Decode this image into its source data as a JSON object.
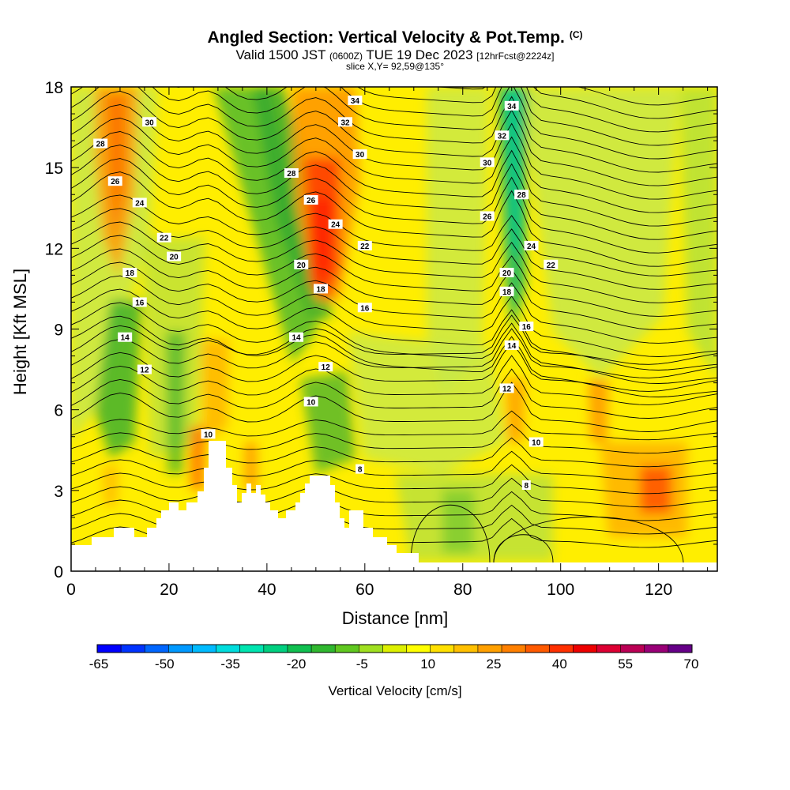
{
  "header": {
    "title": "Angled Section: Vertical Velocity & Pot.Temp.",
    "title_mark": "(C)",
    "valid_prefix": "Valid 1500 JST",
    "valid_utc": "(0600Z)",
    "valid_date": "TUE 19 Dec 2023",
    "forecast": "[12hrFcst@2224z]",
    "slice": "slice X,Y= 92,59@135°"
  },
  "chart_data": {
    "type": "heatmap",
    "xlabel": "Distance [nm]",
    "ylabel": "Height [Kft MSL]",
    "xlim": [
      0,
      132
    ],
    "ylim": [
      0,
      18
    ],
    "x_ticks": [
      "0",
      "20",
      "40",
      "60",
      "80",
      "100",
      "120"
    ],
    "y_ticks": [
      "0",
      "3",
      "6",
      "9",
      "12",
      "15",
      "18"
    ],
    "colorbar": {
      "label": "Vertical Velocity [cm/s]",
      "tick_labels": [
        "-65",
        "-50",
        "-35",
        "-20",
        "-5",
        "10",
        "25",
        "40",
        "55",
        "70"
      ],
      "colors": [
        "#0000ff",
        "#0033ff",
        "#0066ff",
        "#0099ff",
        "#00bbff",
        "#00dddd",
        "#00e5b0",
        "#00d080",
        "#10c050",
        "#30b830",
        "#60c820",
        "#a0e020",
        "#ddf000",
        "#ffff00",
        "#ffe000",
        "#ffc000",
        "#ffa000",
        "#ff8000",
        "#ff5a00",
        "#ff3000",
        "#ee0000",
        "#dd0033",
        "#bb0055",
        "#990077",
        "#660088"
      ]
    },
    "theta_contour_labels": [
      {
        "x": 58,
        "y": 17.5,
        "label": "34"
      },
      {
        "x": 90,
        "y": 17.3,
        "label": "34"
      },
      {
        "x": 56,
        "y": 16.7,
        "label": "32"
      },
      {
        "x": 88,
        "y": 16.2,
        "label": "32"
      },
      {
        "x": 16,
        "y": 16.7,
        "label": "30"
      },
      {
        "x": 59,
        "y": 15.5,
        "label": "30"
      },
      {
        "x": 85,
        "y": 15.2,
        "label": "30"
      },
      {
        "x": 6,
        "y": 15.9,
        "label": "28"
      },
      {
        "x": 45,
        "y": 14.8,
        "label": "28"
      },
      {
        "x": 92,
        "y": 14.0,
        "label": "28"
      },
      {
        "x": 9,
        "y": 14.5,
        "label": "26"
      },
      {
        "x": 49,
        "y": 13.8,
        "label": "26"
      },
      {
        "x": 85,
        "y": 13.2,
        "label": "26"
      },
      {
        "x": 14,
        "y": 13.7,
        "label": "24"
      },
      {
        "x": 54,
        "y": 12.9,
        "label": "24"
      },
      {
        "x": 94,
        "y": 12.1,
        "label": "24"
      },
      {
        "x": 19,
        "y": 12.4,
        "label": "22"
      },
      {
        "x": 60,
        "y": 12.1,
        "label": "22"
      },
      {
        "x": 98,
        "y": 11.4,
        "label": "22"
      },
      {
        "x": 21,
        "y": 11.7,
        "label": "20"
      },
      {
        "x": 47,
        "y": 11.4,
        "label": "20"
      },
      {
        "x": 89,
        "y": 11.1,
        "label": "20"
      },
      {
        "x": 12,
        "y": 11.1,
        "label": "18"
      },
      {
        "x": 51,
        "y": 10.5,
        "label": "18"
      },
      {
        "x": 89,
        "y": 10.4,
        "label": "18"
      },
      {
        "x": 14,
        "y": 10.0,
        "label": "16"
      },
      {
        "x": 60,
        "y": 9.8,
        "label": "16"
      },
      {
        "x": 93,
        "y": 9.1,
        "label": "16"
      },
      {
        "x": 11,
        "y": 8.7,
        "label": "14"
      },
      {
        "x": 46,
        "y": 8.7,
        "label": "14"
      },
      {
        "x": 90,
        "y": 8.4,
        "label": "14"
      },
      {
        "x": 15,
        "y": 7.5,
        "label": "12"
      },
      {
        "x": 52,
        "y": 7.6,
        "label": "12"
      },
      {
        "x": 89,
        "y": 6.8,
        "label": "12"
      },
      {
        "x": 49,
        "y": 6.3,
        "label": "10"
      },
      {
        "x": 28,
        "y": 5.1,
        "label": "10"
      },
      {
        "x": 95,
        "y": 4.8,
        "label": "10"
      },
      {
        "x": 59,
        "y": 3.8,
        "label": "8"
      },
      {
        "x": 93,
        "y": 3.2,
        "label": "8"
      }
    ]
  }
}
